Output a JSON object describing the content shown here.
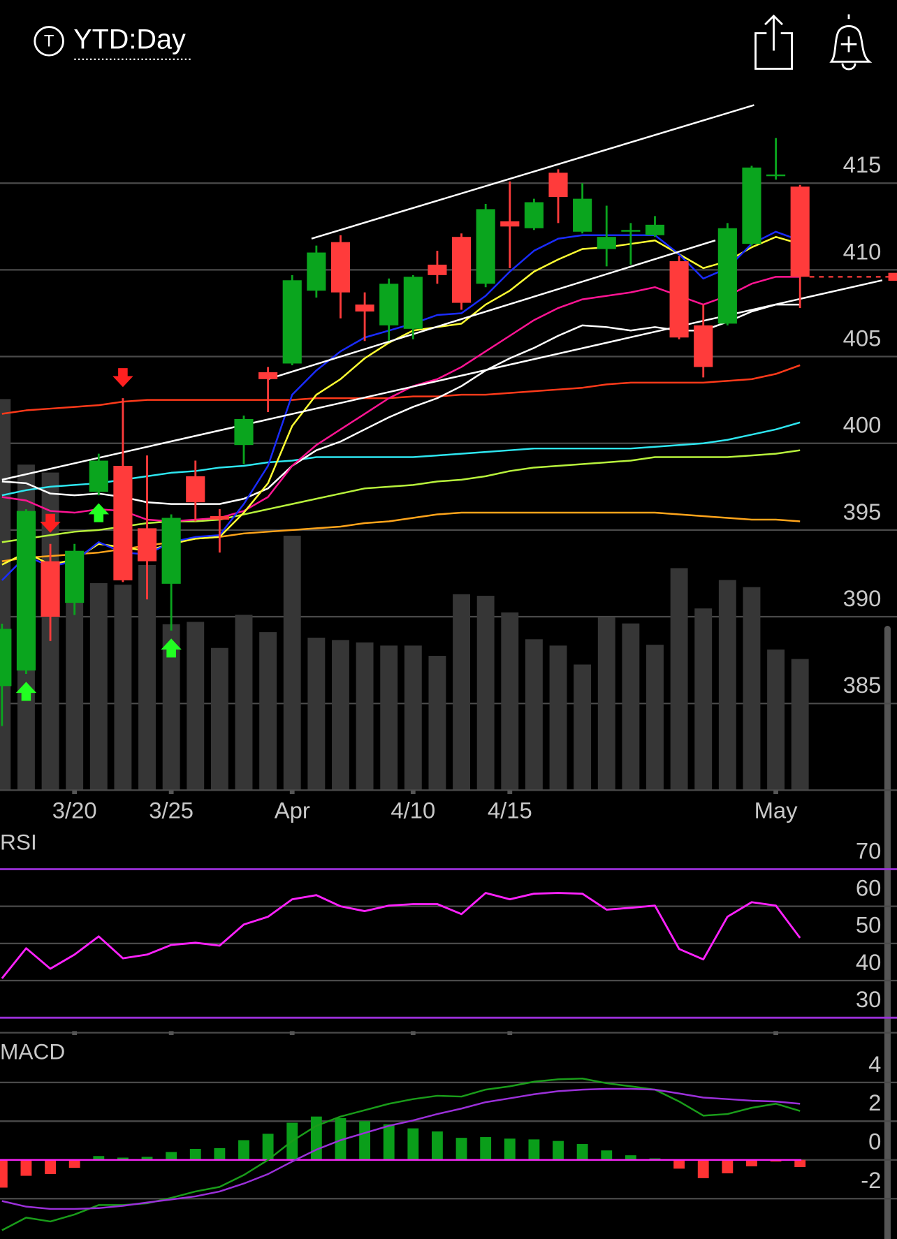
{
  "header": {
    "title": "YTD:Day",
    "icon_letter": "T"
  },
  "chart_data": [
    {
      "type": "candlestick",
      "categories": [
        null,
        null,
        null,
        "3/20",
        null,
        null,
        null,
        "3/25",
        null,
        null,
        null,
        null,
        "Apr",
        null,
        null,
        null,
        null,
        "4/10",
        null,
        null,
        null,
        "4/15",
        null,
        null,
        null,
        null,
        null,
        null,
        null,
        null,
        null,
        null,
        "May",
        null
      ],
      "open": [
        386.0,
        386.9,
        393.2,
        390.8,
        397.2,
        398.7,
        395.1,
        391.9,
        398.1,
        395.8,
        399.9,
        404.1,
        404.6,
        408.8,
        411.6,
        408.0,
        406.8,
        406.6,
        410.3,
        411.9,
        409.2,
        412.8,
        412.4,
        415.6,
        412.2,
        411.2,
        412.2,
        412.0,
        410.5,
        406.8,
        406.9,
        411.5,
        415.4,
        414.8
      ],
      "high": [
        389.6,
        396.2,
        394.2,
        394.2,
        399.4,
        402.6,
        399.3,
        395.9,
        399.0,
        396.2,
        401.6,
        404.4,
        409.7,
        411.4,
        412.0,
        408.7,
        409.5,
        409.7,
        411.1,
        412.1,
        413.8,
        415.1,
        414.1,
        415.8,
        415.0,
        413.7,
        412.7,
        413.1,
        410.8,
        408.0,
        412.7,
        416.0,
        417.6,
        414.9
      ],
      "low": [
        383.7,
        386.7,
        388.6,
        390.1,
        397.0,
        392.0,
        391.0,
        389.2,
        395.5,
        393.7,
        398.8,
        401.8,
        404.5,
        408.4,
        407.2,
        405.9,
        405.9,
        406.0,
        409.2,
        407.7,
        409.0,
        410.1,
        412.3,
        412.7,
        412.1,
        410.2,
        410.3,
        411.9,
        406.0,
        403.8,
        406.8,
        411.4,
        415.2,
        407.8
      ],
      "close": [
        389.3,
        396.1,
        390.0,
        393.8,
        399.0,
        392.1,
        393.2,
        395.7,
        396.6,
        395.6,
        401.4,
        403.7,
        409.4,
        411.0,
        408.7,
        407.6,
        409.2,
        409.6,
        409.7,
        408.1,
        413.5,
        412.5,
        413.9,
        414.2,
        414.1,
        411.9,
        412.3,
        412.6,
        406.1,
        404.4,
        412.4,
        415.9,
        415.5,
        409.6
      ],
      "up_color": "#0aa51e",
      "down_color": "#ff3b3b",
      "ylim": [
        380,
        420.5
      ],
      "yticks": [
        385,
        390,
        395,
        400,
        405,
        410,
        415
      ],
      "grid": true,
      "volume": {
        "color": "#363636",
        "vlim": [
          0,
          889
        ],
        "values": [
          495,
          412,
          402,
          300,
          262,
          260,
          285,
          210,
          213,
          180,
          222,
          200,
          322,
          193,
          190,
          187,
          183,
          183,
          170,
          248,
          246,
          225,
          191,
          183,
          159,
          219,
          211,
          184,
          281,
          230,
          266,
          257,
          178,
          166
        ]
      },
      "moving_averages": [
        {
          "color": "#ffa41b",
          "values": [
            393.2,
            393.4,
            393.5,
            393.6,
            393.7,
            393.9,
            394.1,
            394.3,
            394.5,
            394.6,
            394.8,
            394.9,
            395.0,
            395.1,
            395.2,
            395.4,
            395.5,
            395.7,
            395.9,
            396.0,
            396.0,
            396.0,
            396.0,
            396.0,
            396.0,
            396.0,
            396.0,
            396.0,
            395.9,
            395.8,
            395.7,
            395.6,
            395.6,
            395.5
          ]
        },
        {
          "color": "#b8f23c",
          "values": [
            394.3,
            394.5,
            394.7,
            394.9,
            395.0,
            395.2,
            395.4,
            395.5,
            395.5,
            395.6,
            395.9,
            396.2,
            396.5,
            396.8,
            397.1,
            397.4,
            397.5,
            397.6,
            397.8,
            397.9,
            398.1,
            398.4,
            398.6,
            398.7,
            398.8,
            398.9,
            399.0,
            399.2,
            399.2,
            399.2,
            399.2,
            399.3,
            399.4,
            399.6
          ]
        },
        {
          "color": "#2ee6f0",
          "values": [
            397.0,
            397.3,
            397.5,
            397.6,
            397.7,
            397.9,
            398.1,
            398.3,
            398.4,
            398.6,
            398.7,
            398.9,
            399.0,
            399.2,
            399.2,
            399.2,
            399.2,
            399.2,
            399.3,
            399.4,
            399.5,
            399.6,
            399.7,
            399.7,
            399.7,
            399.7,
            399.7,
            399.8,
            399.9,
            400.0,
            400.2,
            400.5,
            400.8,
            401.2
          ]
        },
        {
          "color": "#ff3a1a",
          "values": [
            401.7,
            401.9,
            402.0,
            402.1,
            402.2,
            402.4,
            402.5,
            402.5,
            402.5,
            402.5,
            402.5,
            402.5,
            402.5,
            402.6,
            402.6,
            402.6,
            402.6,
            402.7,
            402.7,
            402.8,
            402.8,
            402.9,
            403.0,
            403.1,
            403.2,
            403.4,
            403.5,
            403.5,
            403.5,
            403.5,
            403.6,
            403.7,
            404.0,
            404.5
          ]
        },
        {
          "color": "#ffffff",
          "values": [
            397.8,
            397.7,
            397.1,
            397.0,
            397.1,
            396.9,
            396.6,
            396.5,
            396.5,
            396.5,
            396.8,
            397.4,
            398.7,
            399.6,
            400.1,
            400.8,
            401.5,
            402.1,
            402.6,
            403.3,
            404.2,
            404.9,
            405.5,
            406.2,
            406.8,
            406.7,
            406.5,
            406.7,
            406.5,
            406.5,
            407.0,
            407.6,
            408.0,
            408.0
          ]
        },
        {
          "color": "#ff1493",
          "values": [
            396.9,
            396.7,
            396.1,
            396.0,
            396.2,
            396.1,
            395.6,
            395.5,
            395.6,
            395.7,
            396.1,
            396.9,
            398.7,
            399.9,
            400.8,
            401.7,
            402.6,
            403.3,
            403.7,
            404.4,
            405.3,
            406.2,
            407.1,
            407.8,
            408.3,
            408.5,
            408.7,
            409.0,
            408.5,
            408.0,
            408.5,
            409.2,
            409.6,
            409.6
          ]
        },
        {
          "color": "#ffff33",
          "values": [
            393.0,
            393.7,
            393.0,
            393.3,
            394.2,
            394.0,
            393.8,
            394.2,
            394.5,
            394.6,
            396.0,
            397.7,
            401.0,
            402.8,
            403.7,
            404.9,
            405.8,
            406.5,
            406.7,
            406.9,
            408.0,
            408.8,
            409.9,
            410.6,
            411.2,
            411.3,
            411.5,
            411.7,
            410.9,
            410.1,
            410.5,
            411.3,
            411.9,
            411.5
          ]
        },
        {
          "color": "#1a2cff",
          "values": [
            392.1,
            393.5,
            392.9,
            393.2,
            394.3,
            393.7,
            393.6,
            394.3,
            394.6,
            394.7,
            396.5,
            398.7,
            402.8,
            404.2,
            405.3,
            406.1,
            406.5,
            406.9,
            407.4,
            407.5,
            408.5,
            409.9,
            411.1,
            411.8,
            412.0,
            412.0,
            412.0,
            412.0,
            410.9,
            409.5,
            410.1,
            411.5,
            412.2,
            411.7
          ]
        }
      ],
      "trendlines": [
        {
          "color": "#ffffff",
          "x": [
            12.8,
            31.1
          ],
          "y": [
            411.8,
            419.5
          ]
        },
        {
          "color": "#ffffff",
          "x": [
            11.0,
            29.5
          ],
          "y": [
            403.7,
            411.7
          ]
        },
        {
          "color": "#ffffff",
          "x": [
            0,
            36.4
          ],
          "y": [
            397.9,
            409.4
          ]
        }
      ],
      "signals": [
        {
          "index": 1,
          "direction": "buy"
        },
        {
          "index": 2,
          "direction": "sell"
        },
        {
          "index": 4,
          "direction": "buy"
        },
        {
          "index": 5,
          "direction": "sell"
        },
        {
          "index": 7,
          "direction": "buy"
        }
      ],
      "buy_color": "#22ff22",
      "sell_color": "#ff2020"
    },
    {
      "type": "line",
      "title": "RSI",
      "series": [
        {
          "color": "#ff22ff",
          "values": [
            40.6,
            48.7,
            43.2,
            47.0,
            51.9,
            46.0,
            47.0,
            49.6,
            50.2,
            49.4,
            55.1,
            57.2,
            61.9,
            63.0,
            60.0,
            58.7,
            60.2,
            60.6,
            60.6,
            57.9,
            63.6,
            61.9,
            63.4,
            63.6,
            63.4,
            59.1,
            59.6,
            60.2,
            48.5,
            45.7,
            57.2,
            61.1,
            60.2,
            51.5
          ]
        }
      ],
      "ylim": [
        26,
        80
      ],
      "yticks": [
        30,
        40,
        50,
        60,
        70
      ],
      "grid": true,
      "band_color": "#9b30d9"
    },
    {
      "type": "macd",
      "title": "MACD",
      "histogram": {
        "up_color": "#0a9e1a",
        "down_color": "#ff3333",
        "values": [
          -1.43,
          -0.82,
          -0.73,
          -0.41,
          0.2,
          0.12,
          0.16,
          0.41,
          0.57,
          0.61,
          1.02,
          1.35,
          1.92,
          2.24,
          2.16,
          2.0,
          1.84,
          1.63,
          1.47,
          1.14,
          1.18,
          1.1,
          1.06,
          0.98,
          0.82,
          0.49,
          0.24,
          0.08,
          -0.45,
          -0.94,
          -0.69,
          -0.33,
          -0.08,
          -0.37
        ]
      },
      "series": [
        {
          "color": "#1a9c1a",
          "values": [
            -3.63,
            -2.98,
            -3.18,
            -2.82,
            -2.33,
            -2.33,
            -2.24,
            -1.96,
            -1.63,
            -1.39,
            -0.78,
            0,
            0.98,
            1.76,
            2.24,
            2.57,
            2.9,
            3.14,
            3.31,
            3.27,
            3.63,
            3.8,
            4.04,
            4.16,
            4.2,
            3.96,
            3.8,
            3.63,
            3.02,
            2.29,
            2.37,
            2.69,
            2.9,
            2.53
          ]
        },
        {
          "color": "#9b30d9",
          "values": [
            -2.12,
            -2.41,
            -2.53,
            -2.53,
            -2.49,
            -2.37,
            -2.2,
            -2.04,
            -1.88,
            -1.63,
            -1.22,
            -0.73,
            -0.08,
            0.53,
            1.02,
            1.39,
            1.76,
            2.04,
            2.37,
            2.65,
            2.98,
            3.18,
            3.39,
            3.55,
            3.63,
            3.67,
            3.67,
            3.63,
            3.43,
            3.22,
            3.14,
            3.06,
            3.02,
            2.9
          ]
        }
      ],
      "ylim": [
        -4.1,
        6.2
      ],
      "yticks": [
        -2,
        0,
        2,
        4
      ],
      "grid": true,
      "zero_line_color": "#ff22ff"
    }
  ]
}
